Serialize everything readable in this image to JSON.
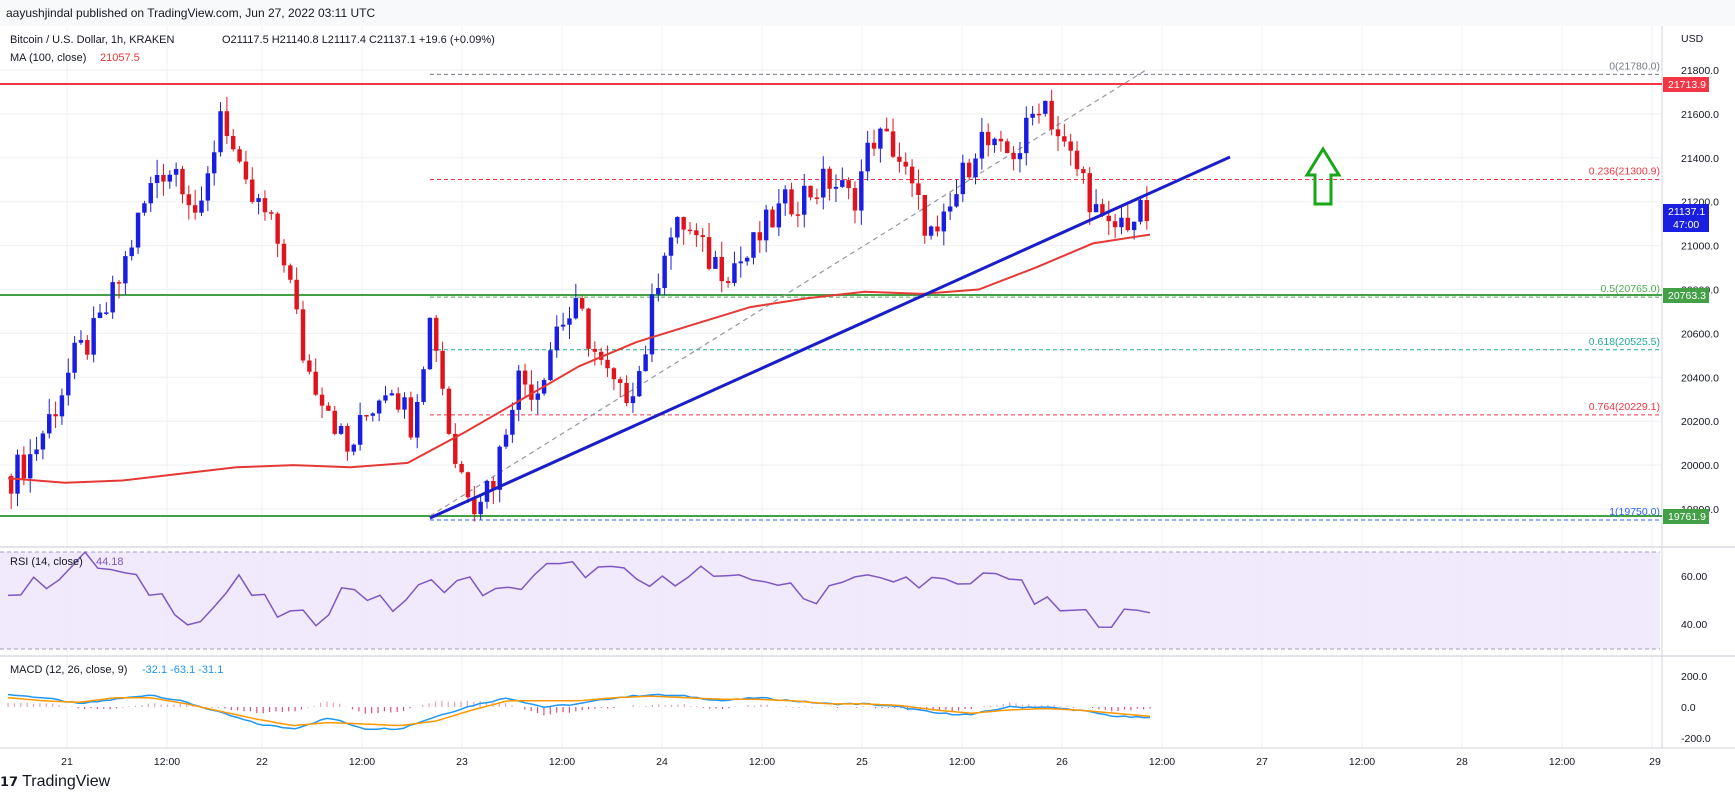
{
  "header": {
    "published_text": "aayushjindal published on TradingView.com, Jun 27, 2022 03:11 UTC"
  },
  "legend": {
    "symbol": "Bitcoin / U.S. Dollar, 1h, KRAKEN",
    "ohlc": "O21117.5  H21140.8  L21117.4  C21137.1  +19.6 (+0.09%)",
    "ma_label": "MA (100, close)",
    "ma_value": "21057.5",
    "rsi_label": "RSI (14, close)",
    "rsi_value": "44.18",
    "macd_label": "MACD (12, 26, close, 9)",
    "macd_values": "-32.1   -63.1   -31.1"
  },
  "price_axis": {
    "currency": "USD",
    "ticks": [
      "21800.0",
      "21600.0",
      "21400.0",
      "21200.0",
      "21000.0",
      "20800.0",
      "20600.0",
      "20400.0",
      "20200.0",
      "20000.0",
      "19800.0"
    ],
    "badges": {
      "resistance": "21713.9",
      "price": "21137.1",
      "countdown": "47:00",
      "support_mid": "20763.3",
      "support_low": "19761.9"
    }
  },
  "rsi_axis": {
    "ticks": [
      "60.00",
      "40.00"
    ]
  },
  "macd_axis": {
    "ticks": [
      "200.0",
      "0.0",
      "-200.0"
    ]
  },
  "time_axis": {
    "ticks": [
      "21",
      "12:00",
      "22",
      "12:00",
      "23",
      "12:00",
      "24",
      "12:00",
      "25",
      "12:00",
      "26",
      "12:00",
      "27",
      "12:00",
      "28",
      "12:00",
      "29"
    ]
  },
  "fib_levels": [
    {
      "label": "0(21780.0)",
      "color": "#787b86"
    },
    {
      "label": "0.236(21300.9)",
      "color": "#f23645"
    },
    {
      "label": "0.5(20765.0)",
      "color": "#4caf50"
    },
    {
      "label": "0.618(20525.5)",
      "color": "#22ab94"
    },
    {
      "label": "0.764(20229.1)",
      "color": "#f23645"
    },
    {
      "label": "1(19750.0)",
      "color": "#2962ff"
    }
  ],
  "colors": {
    "up_candle": "#1a1ee0",
    "down_candle": "#e0141e",
    "ma_line": "#e53935",
    "trendline": "#1a1ec8",
    "resistance": "#f23645",
    "support": "#43a047",
    "arrow": "#19a619",
    "rsi_line": "#7e57c2",
    "macd_line": "#2196f3",
    "signal_line": "#ff9800"
  },
  "footer": {
    "brand": "TradingView"
  },
  "chart_data": {
    "type": "candlestick",
    "title": "Bitcoin / U.S. Dollar, 1h, KRAKEN",
    "x": [
      "21",
      "12:00",
      "22",
      "12:00",
      "23",
      "12:00",
      "24",
      "12:00",
      "25",
      "12:00",
      "26",
      "12:00",
      "27",
      "12:00",
      "28",
      "12:00",
      "29"
    ],
    "ylim": [
      19700,
      21900
    ],
    "close_path_approx": [
      19950,
      20050,
      20250,
      20480,
      20600,
      20800,
      21100,
      21350,
      21350,
      21100,
      21650,
      21250,
      21150,
      20950,
      20450,
      20300,
      20050,
      20250,
      20400,
      20200,
      20700,
      20050,
      19850,
      19950,
      20400,
      20350,
      20650,
      20700,
      20450,
      20300,
      20450,
      21000,
      21100,
      20950,
      20900,
      20950,
      21100,
      21200,
      21250,
      21300,
      21200,
      21500,
      21450,
      21200,
      21000,
      21250,
      21500,
      21400,
      21450,
      21700,
      21450,
      21300,
      21050,
      21120,
      21137
    ],
    "ma100_approx": [
      19940,
      19920,
      19930,
      19960,
      19990,
      20000,
      19990,
      20010,
      20150,
      20300,
      20450,
      20560,
      20640,
      20720,
      20760,
      20790,
      20780,
      20800,
      20900,
      21010,
      21050
    ],
    "rsi_approx": [
      52,
      58,
      67,
      60,
      52,
      40,
      58,
      45,
      41,
      57,
      46,
      56,
      58,
      51,
      63,
      63,
      61,
      55,
      64,
      56,
      60,
      49,
      61,
      57,
      59,
      54,
      64,
      49,
      44,
      42,
      45
    ],
    "levels": {
      "resistance": 21713.9,
      "support_mid": 20763.3,
      "support_low": 19761.9,
      "price": 21137.1
    },
    "fib": [
      {
        "ratio": 0,
        "value": 21780.0
      },
      {
        "ratio": 0.236,
        "value": 21300.9
      },
      {
        "ratio": 0.5,
        "value": 20765.0
      },
      {
        "ratio": 0.618,
        "value": 20525.5
      },
      {
        "ratio": 0.764,
        "value": 20229.1
      },
      {
        "ratio": 1,
        "value": 19750.0
      }
    ],
    "rsi_ylim": [
      0,
      100
    ],
    "macd_ylim": [
      -250,
      250
    ]
  }
}
